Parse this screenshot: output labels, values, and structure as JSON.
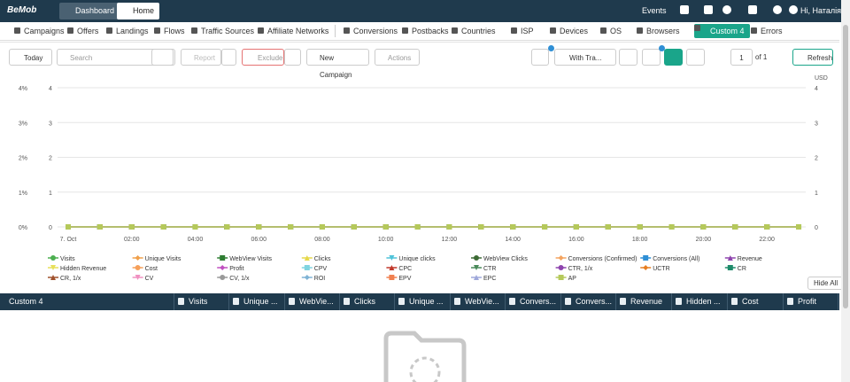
{
  "nav": {
    "brand": "BeMob",
    "tabs": [
      "Dashboard",
      "Home"
    ],
    "events": "Events",
    "user": "Hi, Наталія"
  },
  "menu": {
    "left": [
      "Campaigns",
      "Offers",
      "Landings",
      "Flows",
      "Traffic Sources",
      "Affiliate Networks"
    ],
    "right": [
      "Conversions",
      "Postbacks",
      "Countries",
      "ISP",
      "Devices",
      "OS",
      "Browsers",
      "Custom 4",
      "Errors"
    ]
  },
  "toolbar": {
    "period": "Today",
    "search_placeholder": "Search",
    "report": "Report",
    "exclude": "Exclude",
    "new_campaign": "New Campaign",
    "actions": "Actions",
    "with_traffic": "With Tra...",
    "page": "1",
    "of": "of 1",
    "refresh": "Refresh"
  },
  "chart_data": {
    "type": "line",
    "categories": [
      "7. Oct",
      null,
      "02:00",
      null,
      "04:00",
      null,
      "06:00",
      null,
      "08:00",
      null,
      "10:00",
      null,
      "12:00",
      null,
      "14:00",
      null,
      "16:00",
      null,
      "18:00",
      null,
      "20:00",
      null,
      "22:00",
      null
    ],
    "ylim": [
      0,
      4
    ],
    "yticks": [
      {
        "value": 0,
        "label": "0%"
      },
      {
        "value": 1,
        "label": "1%"
      },
      {
        "value": 2,
        "label": "2%"
      },
      {
        "value": 3,
        "label": "3%"
      },
      {
        "value": 4,
        "label": "4%"
      }
    ],
    "y2lim": [
      0,
      4
    ],
    "y2ticks": [
      0,
      1,
      2,
      3,
      4
    ],
    "y2_label": "USD",
    "grid": true,
    "series": [
      {
        "name": "Visits",
        "color": "#4caf50",
        "marker": "circle",
        "values": [
          0,
          0,
          0,
          0,
          0,
          0,
          0,
          0,
          0,
          0,
          0,
          0,
          0,
          0,
          0,
          0,
          0,
          0,
          0,
          0,
          0,
          0,
          0,
          0
        ]
      },
      {
        "name": "Unique Visits",
        "color": "#f0a04b",
        "marker": "diamond",
        "values": [
          0,
          0,
          0,
          0,
          0,
          0,
          0,
          0,
          0,
          0,
          0,
          0,
          0,
          0,
          0,
          0,
          0,
          0,
          0,
          0,
          0,
          0,
          0,
          0
        ]
      },
      {
        "name": "WebView Visits",
        "color": "#2e7d32",
        "marker": "square",
        "values": [
          0,
          0,
          0,
          0,
          0,
          0,
          0,
          0,
          0,
          0,
          0,
          0,
          0,
          0,
          0,
          0,
          0,
          0,
          0,
          0,
          0,
          0,
          0,
          0
        ]
      },
      {
        "name": "Clicks",
        "color": "#e6d84a",
        "marker": "triangle",
        "values": [
          0,
          0,
          0,
          0,
          0,
          0,
          0,
          0,
          0,
          0,
          0,
          0,
          0,
          0,
          0,
          0,
          0,
          0,
          0,
          0,
          0,
          0,
          0,
          0
        ]
      },
      {
        "name": "Unique clicks",
        "color": "#4fc3d9",
        "marker": "triangle-down",
        "values": [
          0,
          0,
          0,
          0,
          0,
          0,
          0,
          0,
          0,
          0,
          0,
          0,
          0,
          0,
          0,
          0,
          0,
          0,
          0,
          0,
          0,
          0,
          0,
          0
        ]
      },
      {
        "name": "WebView Clicks",
        "color": "#3d6b35",
        "marker": "circle",
        "values": [
          0,
          0,
          0,
          0,
          0,
          0,
          0,
          0,
          0,
          0,
          0,
          0,
          0,
          0,
          0,
          0,
          0,
          0,
          0,
          0,
          0,
          0,
          0,
          0
        ]
      },
      {
        "name": "Conversions (Confirmed)",
        "color": "#f4a460",
        "marker": "diamond",
        "values": [
          0,
          0,
          0,
          0,
          0,
          0,
          0,
          0,
          0,
          0,
          0,
          0,
          0,
          0,
          0,
          0,
          0,
          0,
          0,
          0,
          0,
          0,
          0,
          0
        ]
      },
      {
        "name": "Conversions (All)",
        "color": "#2f8fd5",
        "marker": "square",
        "values": [
          0,
          0,
          0,
          0,
          0,
          0,
          0,
          0,
          0,
          0,
          0,
          0,
          0,
          0,
          0,
          0,
          0,
          0,
          0,
          0,
          0,
          0,
          0,
          0
        ]
      },
      {
        "name": "Revenue",
        "color": "#8e44ad",
        "marker": "triangle",
        "values": [
          0,
          0,
          0,
          0,
          0,
          0,
          0,
          0,
          0,
          0,
          0,
          0,
          0,
          0,
          0,
          0,
          0,
          0,
          0,
          0,
          0,
          0,
          0,
          0
        ]
      },
      {
        "name": "Hidden Revenue",
        "color": "#e8e05a",
        "marker": "triangle-down",
        "values": [
          0,
          0,
          0,
          0,
          0,
          0,
          0,
          0,
          0,
          0,
          0,
          0,
          0,
          0,
          0,
          0,
          0,
          0,
          0,
          0,
          0,
          0,
          0,
          0
        ]
      },
      {
        "name": "Cost",
        "color": "#f6a05a",
        "marker": "circle",
        "values": [
          0,
          0,
          0,
          0,
          0,
          0,
          0,
          0,
          0,
          0,
          0,
          0,
          0,
          0,
          0,
          0,
          0,
          0,
          0,
          0,
          0,
          0,
          0,
          0
        ]
      },
      {
        "name": "Profit",
        "color": "#c050c0",
        "marker": "diamond",
        "values": [
          0,
          0,
          0,
          0,
          0,
          0,
          0,
          0,
          0,
          0,
          0,
          0,
          0,
          0,
          0,
          0,
          0,
          0,
          0,
          0,
          0,
          0,
          0,
          0
        ]
      },
      {
        "name": "CPV",
        "color": "#7fd4e0",
        "marker": "square",
        "values": [
          0,
          0,
          0,
          0,
          0,
          0,
          0,
          0,
          0,
          0,
          0,
          0,
          0,
          0,
          0,
          0,
          0,
          0,
          0,
          0,
          0,
          0,
          0,
          0
        ]
      },
      {
        "name": "CPC",
        "color": "#c0392b",
        "marker": "triangle",
        "values": [
          0,
          0,
          0,
          0,
          0,
          0,
          0,
          0,
          0,
          0,
          0,
          0,
          0,
          0,
          0,
          0,
          0,
          0,
          0,
          0,
          0,
          0,
          0,
          0
        ]
      },
      {
        "name": "CTR",
        "color": "#4a8a5a",
        "marker": "triangle-down",
        "values": [
          0,
          0,
          0,
          0,
          0,
          0,
          0,
          0,
          0,
          0,
          0,
          0,
          0,
          0,
          0,
          0,
          0,
          0,
          0,
          0,
          0,
          0,
          0,
          0
        ]
      },
      {
        "name": "CTR, 1/x",
        "color": "#8e44ad",
        "marker": "circle",
        "values": [
          0,
          0,
          0,
          0,
          0,
          0,
          0,
          0,
          0,
          0,
          0,
          0,
          0,
          0,
          0,
          0,
          0,
          0,
          0,
          0,
          0,
          0,
          0,
          0
        ]
      },
      {
        "name": "UCTR",
        "color": "#e67e22",
        "marker": "diamond",
        "values": [
          0,
          0,
          0,
          0,
          0,
          0,
          0,
          0,
          0,
          0,
          0,
          0,
          0,
          0,
          0,
          0,
          0,
          0,
          0,
          0,
          0,
          0,
          0,
          0
        ]
      },
      {
        "name": "CR",
        "color": "#1e8a6a",
        "marker": "square",
        "values": [
          0,
          0,
          0,
          0,
          0,
          0,
          0,
          0,
          0,
          0,
          0,
          0,
          0,
          0,
          0,
          0,
          0,
          0,
          0,
          0,
          0,
          0,
          0,
          0
        ]
      },
      {
        "name": "CR, 1/x",
        "color": "#a0522d",
        "marker": "triangle",
        "values": [
          0,
          0,
          0,
          0,
          0,
          0,
          0,
          0,
          0,
          0,
          0,
          0,
          0,
          0,
          0,
          0,
          0,
          0,
          0,
          0,
          0,
          0,
          0,
          0
        ]
      },
      {
        "name": "CV",
        "color": "#f090c0",
        "marker": "triangle-down",
        "values": [
          0,
          0,
          0,
          0,
          0,
          0,
          0,
          0,
          0,
          0,
          0,
          0,
          0,
          0,
          0,
          0,
          0,
          0,
          0,
          0,
          0,
          0,
          0,
          0
        ]
      },
      {
        "name": "CV, 1/x",
        "color": "#999999",
        "marker": "circle",
        "values": [
          0,
          0,
          0,
          0,
          0,
          0,
          0,
          0,
          0,
          0,
          0,
          0,
          0,
          0,
          0,
          0,
          0,
          0,
          0,
          0,
          0,
          0,
          0,
          0
        ]
      },
      {
        "name": "ROI",
        "color": "#7fb3d5",
        "marker": "diamond",
        "values": [
          0,
          0,
          0,
          0,
          0,
          0,
          0,
          0,
          0,
          0,
          0,
          0,
          0,
          0,
          0,
          0,
          0,
          0,
          0,
          0,
          0,
          0,
          0,
          0
        ]
      },
      {
        "name": "EPV",
        "color": "#f08050",
        "marker": "square",
        "values": [
          0,
          0,
          0,
          0,
          0,
          0,
          0,
          0,
          0,
          0,
          0,
          0,
          0,
          0,
          0,
          0,
          0,
          0,
          0,
          0,
          0,
          0,
          0,
          0
        ]
      },
      {
        "name": "EPC",
        "color": "#9fa8da",
        "marker": "triangle",
        "values": [
          0,
          0,
          0,
          0,
          0,
          0,
          0,
          0,
          0,
          0,
          0,
          0,
          0,
          0,
          0,
          0,
          0,
          0,
          0,
          0,
          0,
          0,
          0,
          0
        ]
      },
      {
        "name": "AP",
        "color": "#b5c95a",
        "marker": "square",
        "values": [
          0,
          0,
          0,
          0,
          0,
          0,
          0,
          0,
          0,
          0,
          0,
          0,
          0,
          0,
          0,
          0,
          0,
          0,
          0,
          0,
          0,
          0,
          0,
          0
        ]
      }
    ]
  },
  "table": {
    "columns": [
      "Custom 4",
      "Visits",
      "Unique ...",
      "WebVie...",
      "Clicks",
      "Unique ...",
      "WebVie...",
      "Convers...",
      "Convers...",
      "Revenue",
      "Hidden ...",
      "Cost",
      "Profit"
    ],
    "hide_all": "Hide All"
  }
}
